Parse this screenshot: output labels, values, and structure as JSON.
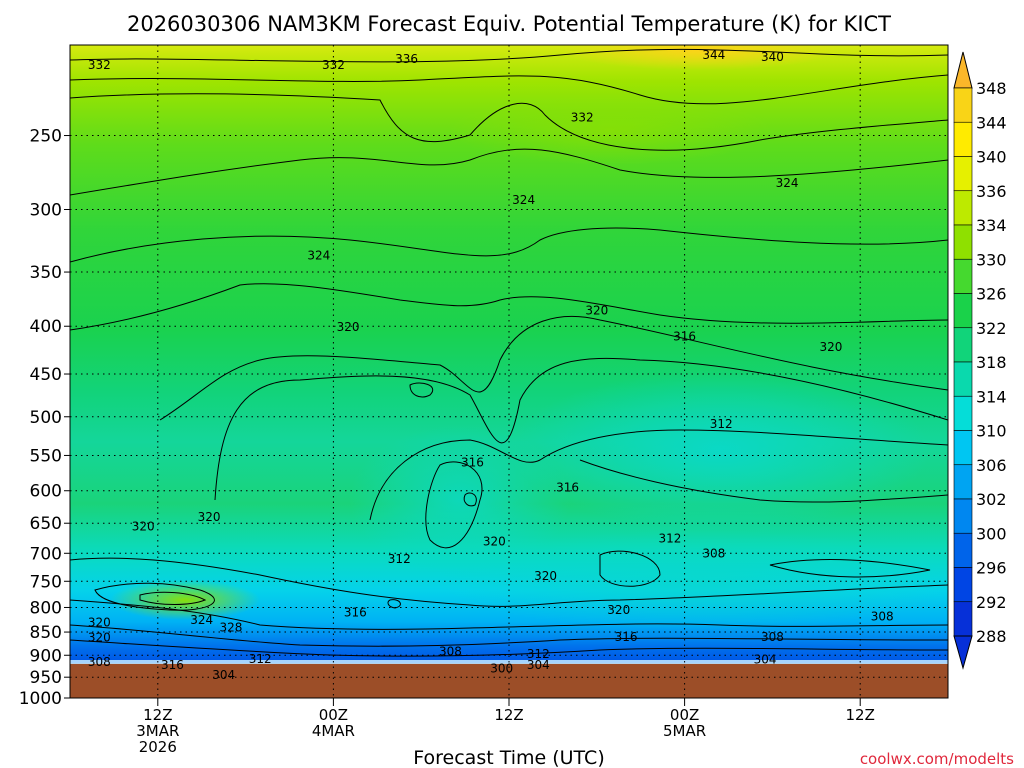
{
  "chart_data": {
    "type": "heatmap",
    "title": "2026030306 NAM3KM Forecast Equiv. Potential Temperature (K) for KICT",
    "xlabel": "Forecast Time (UTC)",
    "credit": "coolwx.com/modelts",
    "y_axis": {
      "unit": "hPa",
      "ylim": [
        1000,
        200
      ],
      "ticks": [
        250,
        300,
        350,
        400,
        450,
        500,
        550,
        600,
        650,
        700,
        750,
        800,
        850,
        900,
        950,
        1000
      ]
    },
    "x_axis": {
      "xlim_hours": [
        3,
        63
      ],
      "ticks": [
        {
          "hour": 9,
          "lines": [
            "12Z",
            "3MAR",
            "2026"
          ]
        },
        {
          "hour": 21,
          "lines": [
            "00Z",
            "4MAR"
          ]
        },
        {
          "hour": 33,
          "lines": [
            "12Z"
          ]
        },
        {
          "hour": 45,
          "lines": [
            "00Z",
            "5MAR"
          ]
        },
        {
          "hour": 57,
          "lines": [
            "12Z"
          ]
        }
      ]
    },
    "colorbar": {
      "levels": [
        348,
        344,
        340,
        336,
        334,
        330,
        326,
        322,
        318,
        314,
        310,
        306,
        302,
        300,
        296,
        292,
        288
      ],
      "colors": [
        "#fbb72a",
        "#f9d417",
        "#ffeb00",
        "#e6f000",
        "#bdea00",
        "#8fe000",
        "#45d92f",
        "#1ad24a",
        "#11d47a",
        "#0ad9ad",
        "#05ddd8",
        "#00c6f2",
        "#00a4f2",
        "#0087f0",
        "#0064ea",
        "#0045e4",
        "#0630d8"
      ]
    },
    "contour_labels": [
      {
        "value": "332",
        "hour": 5.0,
        "p": 210
      },
      {
        "value": "332",
        "hour": 21.0,
        "p": 210
      },
      {
        "value": "336",
        "hour": 26.0,
        "p": 207
      },
      {
        "value": "344",
        "hour": 47.0,
        "p": 205
      },
      {
        "value": "340",
        "hour": 51.0,
        "p": 206
      },
      {
        "value": "332",
        "hour": 38.0,
        "p": 239
      },
      {
        "value": "324",
        "hour": 34.0,
        "p": 293
      },
      {
        "value": "324",
        "hour": 52.0,
        "p": 281
      },
      {
        "value": "324",
        "hour": 20.0,
        "p": 336
      },
      {
        "value": "320",
        "hour": 22.0,
        "p": 401
      },
      {
        "value": "320",
        "hour": 39.0,
        "p": 385
      },
      {
        "value": "316",
        "hour": 45.0,
        "p": 410
      },
      {
        "value": "320",
        "hour": 55.0,
        "p": 421
      },
      {
        "value": "312",
        "hour": 47.5,
        "p": 509
      },
      {
        "value": "316",
        "hour": 30.5,
        "p": 560
      },
      {
        "value": "316",
        "hour": 37.0,
        "p": 595
      },
      {
        "value": "320",
        "hour": 8.0,
        "p": 655
      },
      {
        "value": "320",
        "hour": 12.5,
        "p": 640
      },
      {
        "value": "320",
        "hour": 32.0,
        "p": 680
      },
      {
        "value": "312",
        "hour": 25.5,
        "p": 710
      },
      {
        "value": "312",
        "hour": 44.0,
        "p": 675
      },
      {
        "value": "308",
        "hour": 47.0,
        "p": 700
      },
      {
        "value": "320",
        "hour": 35.5,
        "p": 740
      },
      {
        "value": "316",
        "hour": 22.5,
        "p": 810
      },
      {
        "value": "320",
        "hour": 40.5,
        "p": 805
      },
      {
        "value": "308",
        "hour": 58.5,
        "p": 818
      },
      {
        "value": "320",
        "hour": 5.0,
        "p": 830
      },
      {
        "value": "324",
        "hour": 12.0,
        "p": 825
      },
      {
        "value": "328",
        "hour": 14.0,
        "p": 840
      },
      {
        "value": "320",
        "hour": 5.0,
        "p": 862
      },
      {
        "value": "316",
        "hour": 41.0,
        "p": 860
      },
      {
        "value": "308",
        "hour": 51.0,
        "p": 860
      },
      {
        "value": "312",
        "hour": 16.0,
        "p": 908
      },
      {
        "value": "308",
        "hour": 29.0,
        "p": 892
      },
      {
        "value": "312",
        "hour": 35.0,
        "p": 897
      },
      {
        "value": "308",
        "hour": 5.0,
        "p": 915
      },
      {
        "value": "316",
        "hour": 10.0,
        "p": 922
      },
      {
        "value": "304",
        "hour": 35.0,
        "p": 922
      },
      {
        "value": "300",
        "hour": 32.5,
        "p": 930
      },
      {
        "value": "304",
        "hour": 50.5,
        "p": 910
      },
      {
        "value": "304",
        "hour": 13.5,
        "p": 945
      }
    ]
  }
}
